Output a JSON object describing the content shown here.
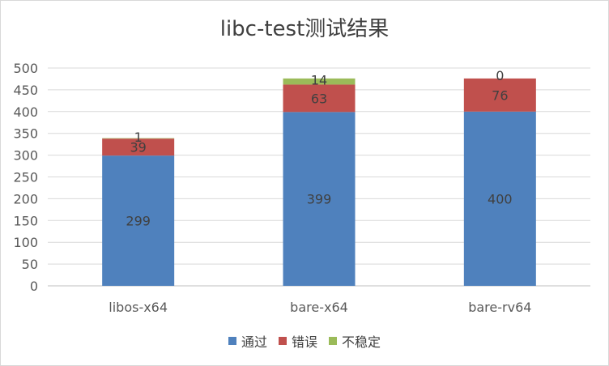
{
  "chart_data": {
    "type": "bar",
    "stacked": true,
    "title": "libc-test测试结果",
    "categories": [
      "libos-x64",
      "bare-x64",
      "bare-rv64"
    ],
    "series": [
      {
        "name": "通过",
        "values": [
          299,
          399,
          400
        ],
        "color": "#4f81bd"
      },
      {
        "name": "错误",
        "values": [
          39,
          63,
          76
        ],
        "color": "#c0504d"
      },
      {
        "name": "不稳定",
        "values": [
          1,
          14,
          0
        ],
        "color": "#9bbb59"
      }
    ],
    "ylim": [
      0,
      500
    ],
    "yticks": [
      0,
      50,
      100,
      150,
      200,
      250,
      300,
      350,
      400,
      450,
      500
    ],
    "grid": true,
    "legend_position": "bottom"
  }
}
